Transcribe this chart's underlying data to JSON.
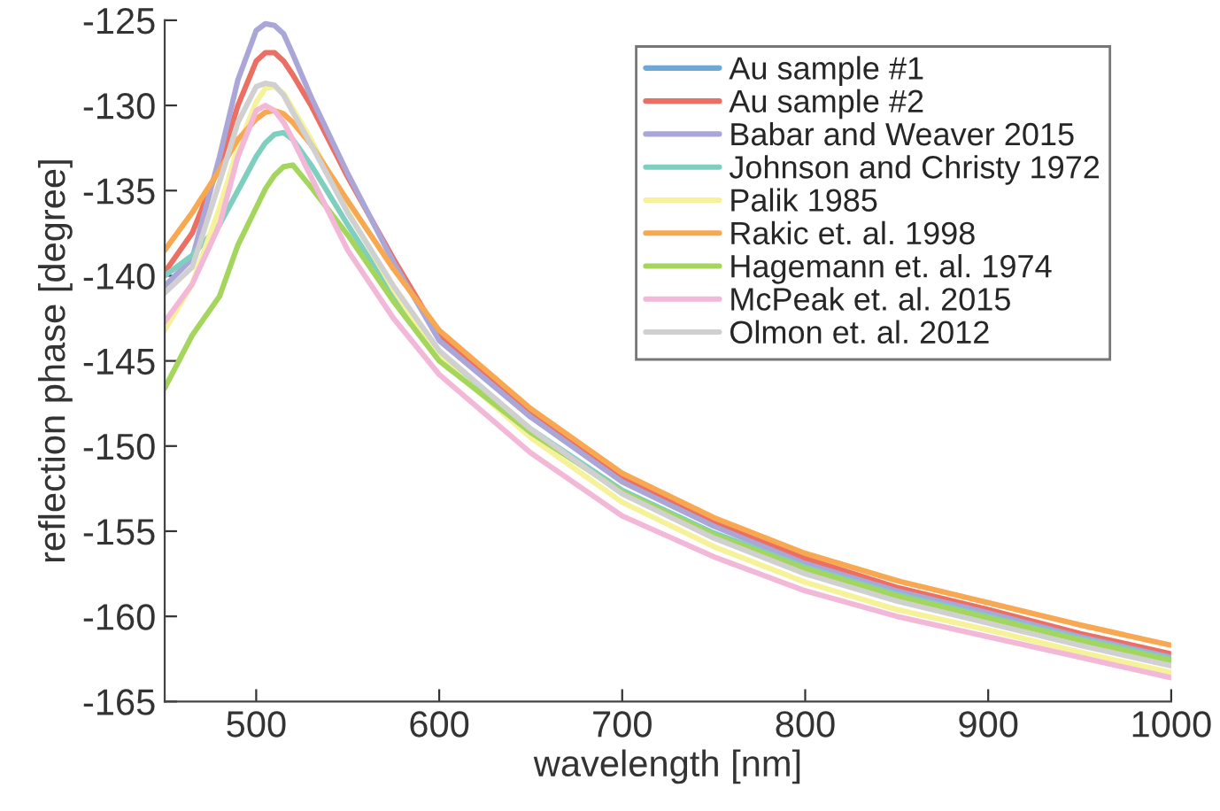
{
  "chart_data": {
    "type": "line",
    "xlabel": "wavelength [nm]",
    "ylabel": "reflection phase [degree]",
    "x": [
      450,
      465,
      480,
      490,
      500,
      505,
      510,
      515,
      520,
      530,
      550,
      575,
      600,
      650,
      700,
      750,
      800,
      850,
      900,
      950,
      1000
    ],
    "series": [
      {
        "name": "Au sample #1",
        "color": "#6fa8d6",
        "values": [
          null,
          null,
          null,
          null,
          null,
          null,
          null,
          null,
          null,
          null,
          null,
          null,
          null,
          null,
          null,
          null,
          null,
          null,
          null,
          null,
          null
        ]
      },
      {
        "name": "Au sample #2",
        "color": "#ec6f63",
        "values": [
          -139.8,
          -137.5,
          -133.5,
          -130.0,
          -127.4,
          -126.9,
          -126.9,
          -127.4,
          -128.2,
          -130.0,
          -134.2,
          -139.0,
          -143.5,
          -148.1,
          -151.9,
          -154.5,
          -156.6,
          -158.3,
          -159.6,
          -161.0,
          -162.2
        ]
      },
      {
        "name": "Babar and Weaver 2015",
        "color": "#aaa6d8",
        "values": [
          -140.6,
          -139.0,
          -133.0,
          -128.5,
          -125.6,
          -125.2,
          -125.3,
          -125.8,
          -127.0,
          -129.5,
          -134.0,
          -139.2,
          -143.8,
          -148.3,
          -152.1,
          -154.7,
          -156.9,
          -158.5,
          -159.8,
          -161.2,
          -162.4
        ]
      },
      {
        "name": "Johnson and Christy 1972",
        "color": "#7fcfc0",
        "values": [
          -140.0,
          -138.8,
          -137.0,
          -135.0,
          -133.0,
          -132.2,
          -131.7,
          -131.6,
          -132.0,
          -133.5,
          -137.0,
          -141.2,
          -144.5,
          -149.0,
          -152.6,
          -155.1,
          -157.1,
          -158.7,
          -160.0,
          -161.3,
          -162.5
        ]
      },
      {
        "name": "Palik 1985",
        "color": "#f5f29a",
        "values": [
          -143.2,
          -140.5,
          -136.0,
          -132.5,
          -129.8,
          -129.0,
          -128.9,
          -129.3,
          -130.2,
          -132.0,
          -136.2,
          -140.8,
          -144.8,
          -149.5,
          -153.3,
          -155.9,
          -158.0,
          -159.6,
          -160.8,
          -162.1,
          -163.3
        ]
      },
      {
        "name": "Rakic et. al. 1998",
        "color": "#f7a851",
        "values": [
          -138.5,
          -136.3,
          -133.8,
          -132.0,
          -130.8,
          -130.4,
          -130.3,
          -130.5,
          -131.0,
          -132.3,
          -135.6,
          -139.6,
          -143.2,
          -147.8,
          -151.6,
          -154.2,
          -156.3,
          -157.9,
          -159.2,
          -160.5,
          -161.7
        ]
      },
      {
        "name": "Hagemann et. al. 1974",
        "color": "#a4d65e",
        "values": [
          -146.6,
          -143.5,
          -141.2,
          -138.2,
          -136.0,
          -134.9,
          -134.1,
          -133.6,
          -133.5,
          -134.8,
          -137.6,
          -141.5,
          -145.0,
          -149.2,
          -152.7,
          -155.2,
          -157.2,
          -158.8,
          -160.1,
          -161.4,
          -162.6
        ]
      },
      {
        "name": "McPeak et. al. 2015",
        "color": "#f3b8d8",
        "values": [
          -142.7,
          -140.5,
          -137.0,
          -133.0,
          -130.3,
          -130.0,
          -130.3,
          -131.0,
          -132.0,
          -134.2,
          -138.5,
          -142.5,
          -145.8,
          -150.4,
          -154.1,
          -156.5,
          -158.5,
          -160.0,
          -161.2,
          -162.4,
          -163.6
        ]
      },
      {
        "name": "Olmon et. al. 2012",
        "color": "#d0d0d0",
        "values": [
          -141.0,
          -139.5,
          -134.5,
          -131.0,
          -128.9,
          -128.7,
          -128.8,
          -129.4,
          -130.4,
          -132.3,
          -136.3,
          -140.6,
          -144.4,
          -149.0,
          -152.8,
          -155.4,
          -157.5,
          -159.1,
          -160.4,
          -161.7,
          -162.9
        ]
      }
    ],
    "xlim": [
      450,
      1000
    ],
    "xticks": [
      500,
      600,
      700,
      800,
      900,
      1000
    ],
    "ylim": [
      -165,
      -125
    ],
    "yticks": [
      -165,
      -160,
      -155,
      -150,
      -145,
      -140,
      -135,
      -130,
      -125
    ],
    "legend": "top right",
    "grid": false,
    "line_style": "solid",
    "marker": "none"
  }
}
